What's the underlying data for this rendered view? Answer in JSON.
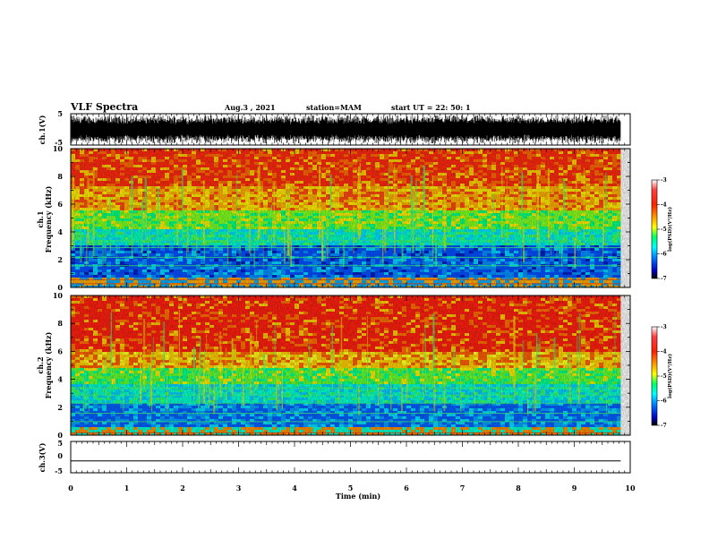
{
  "header": {
    "title": "VLF Spectra",
    "date": "Aug.3  , 2021",
    "station": "station=MAM",
    "start": "start  UT  =   22: 50: 1"
  },
  "colorbar": {
    "label": "log(PSD)(V²/Hz)",
    "ticks": [
      "-3",
      "-4",
      "-5",
      "-6",
      "-7"
    ],
    "colors": [
      "#ffffff",
      "#ff0000",
      "#ffaa00",
      "#ffff00",
      "#00ff66",
      "#00ffff",
      "#0077ff",
      "#0000cc",
      "#000000"
    ]
  },
  "chart_data": [
    {
      "type": "line",
      "name": "ch1-waveform",
      "ylabel": "ch.1(V)",
      "ylim": [
        -5,
        5
      ],
      "yticks": [
        "5",
        "-5"
      ],
      "xlim": [
        0,
        10
      ],
      "description_value_range": [
        -5,
        5
      ]
    },
    {
      "type": "heatmap",
      "name": "ch1-spectrogram",
      "ylabel": "ch.1\nFrequency (kHz)",
      "ylabel_line1": "ch.1",
      "ylabel_line2": "Frequency (kHz)",
      "xlim": [
        0,
        10
      ],
      "ylim": [
        0,
        10
      ],
      "yticks": [
        "10",
        "8",
        "6",
        "4",
        "2",
        "0"
      ],
      "color_scale": [
        -7,
        -3
      ]
    },
    {
      "type": "heatmap",
      "name": "ch2-spectrogram",
      "ylabel_line1": "ch.2",
      "ylabel_line2": "Frequency (kHz)",
      "xlim": [
        0,
        10
      ],
      "ylim": [
        0,
        10
      ],
      "yticks": [
        "10",
        "8",
        "6",
        "4",
        "2",
        "0"
      ],
      "color_scale": [
        -7,
        -3
      ]
    },
    {
      "type": "line",
      "name": "ch3-waveform",
      "ylabel": "ch.3(V)",
      "ylim": [
        -5,
        5
      ],
      "yticks": [
        "5",
        "0",
        "-5"
      ],
      "xlim": [
        0,
        10
      ],
      "x": [
        0,
        9.83
      ],
      "y": [
        -1.2,
        -1.2
      ]
    }
  ],
  "xaxis": {
    "label": "Time  (min)",
    "ticks": [
      "0",
      "1",
      "2",
      "3",
      "4",
      "5",
      "6",
      "7",
      "8",
      "9",
      "10"
    ]
  }
}
